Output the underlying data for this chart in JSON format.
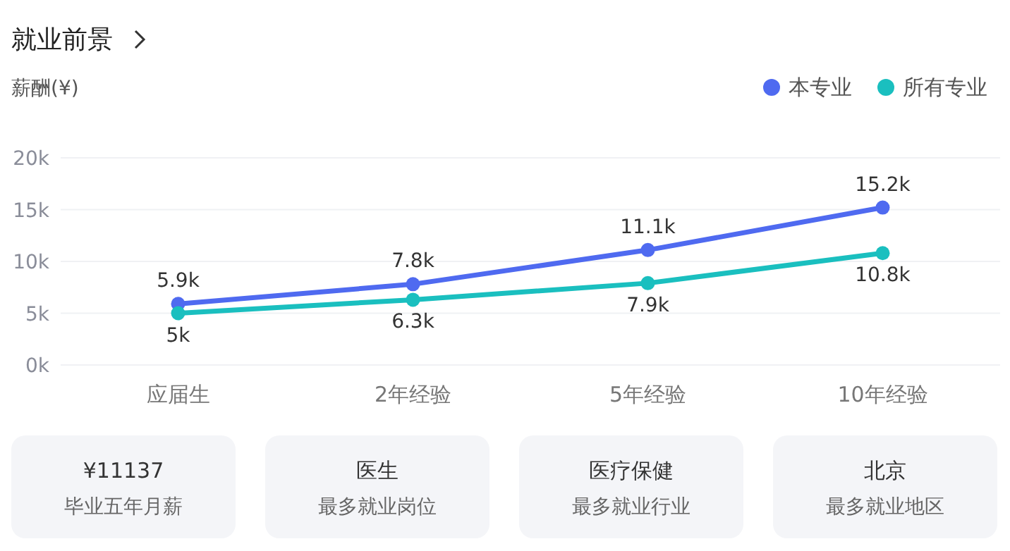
{
  "chart_data": [
    {
      "type": "line",
      "title": "就业前景",
      "ylabel": "薪酬(¥)",
      "categories": [
        "应届生",
        "2年经验",
        "5年经验",
        "10年经验"
      ],
      "series": [
        {
          "name": "本专业",
          "color": "#4f6af0",
          "values": [
            5.9,
            7.8,
            11.1,
            15.2
          ],
          "value_labels": [
            "5.9k",
            "7.8k",
            "11.1k",
            "15.2k"
          ]
        },
        {
          "name": "所有专业",
          "color": "#1abfbf",
          "values": [
            5,
            6.3,
            7.9,
            10.8
          ],
          "value_labels": [
            "5k",
            "6.3k",
            "7.9k",
            "10.8k"
          ]
        }
      ],
      "ylim": [
        0,
        20
      ],
      "yticks": [
        {
          "value": 0,
          "label": "0k"
        },
        {
          "value": 5,
          "label": "5k"
        },
        {
          "value": 10,
          "label": "10k"
        },
        {
          "value": 15,
          "label": "15k"
        },
        {
          "value": 20,
          "label": "20k"
        }
      ],
      "grid": "y",
      "legend": "top right",
      "marker": "circle",
      "line_style": "solid"
    },
    {
      "type": "other",
      "annotations": [
        "¥11137",
        "毕业五年月薪",
        "医生",
        "最多就业岗位",
        "医疗保健",
        "最多就业行业",
        "北京",
        "最多就业地区"
      ]
    }
  ]
}
